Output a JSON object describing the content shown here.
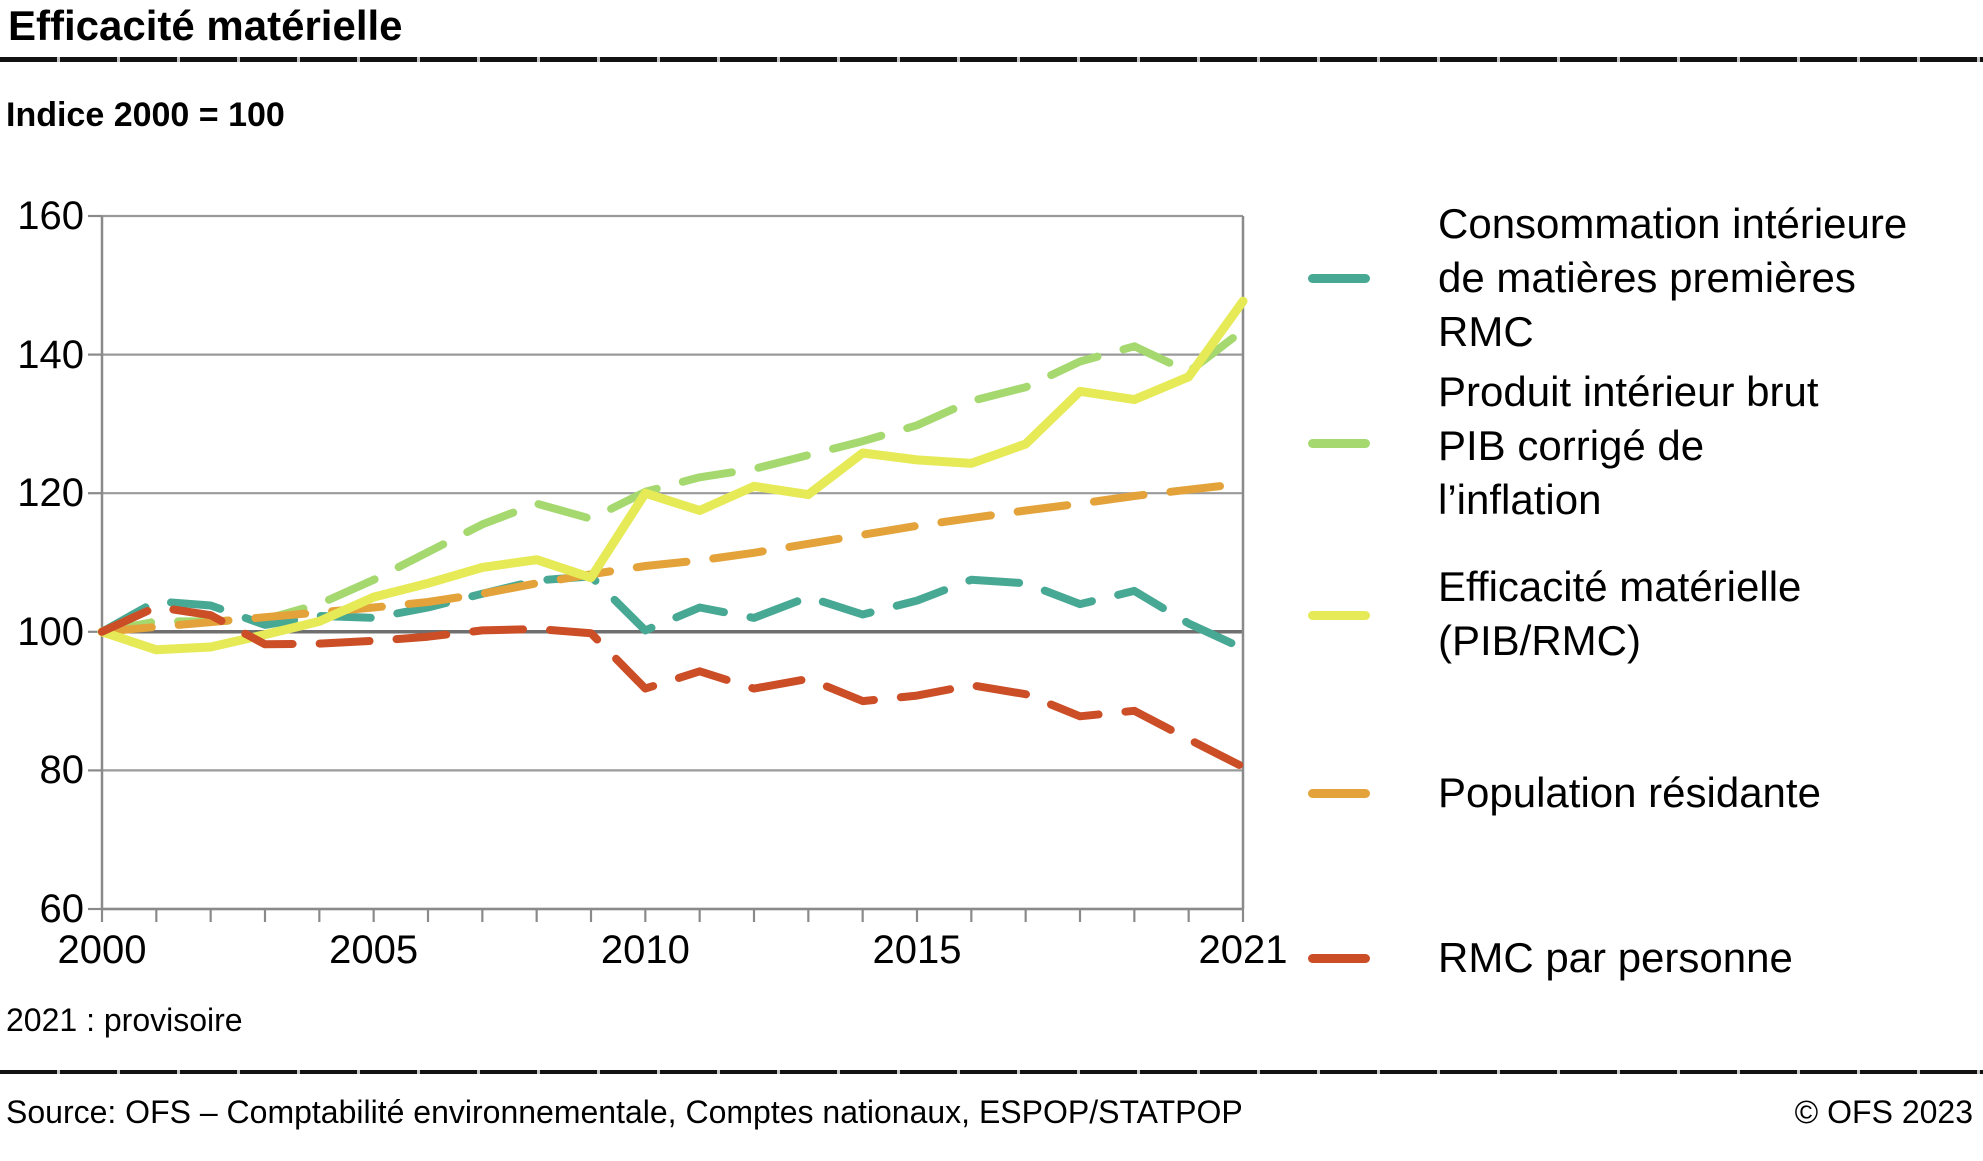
{
  "header": {
    "title": "Efficacité matérielle",
    "subtitle": "Indice 2000 = 100"
  },
  "footnote": "2021 : provisoire",
  "footer": {
    "source": "Source: OFS – Comptabilité environnementale, Comptes nationaux, ESPOP/STATPOP",
    "copyright": "© OFS 2023"
  },
  "colors": {
    "rmc": "#47a893",
    "pib": "#a5d96f",
    "efficacite": "#e6ea57",
    "population": "#e3a33a",
    "rmc_par_personne": "#cb4e27",
    "grid": "#9a9a9a",
    "grid_reference": "#6f6f6f",
    "axis": "#8a8a8a",
    "text": "#000000"
  },
  "chart_data": {
    "type": "line",
    "title": "Efficacité matérielle",
    "unit_label": "Indice 2000 = 100",
    "x": [
      2000,
      2001,
      2002,
      2003,
      2004,
      2005,
      2006,
      2007,
      2008,
      2009,
      2010,
      2011,
      2012,
      2013,
      2014,
      2015,
      2016,
      2017,
      2018,
      2019,
      2020,
      2021
    ],
    "x_tick_labels": [
      "2000",
      "2005",
      "2010",
      "2015",
      "2021"
    ],
    "x_tick_positions": [
      2000,
      2005,
      2010,
      2015,
      2021
    ],
    "y_ticks": [
      160,
      140,
      120,
      100,
      80,
      60
    ],
    "ylim": [
      60,
      160
    ],
    "xlim": [
      2000,
      2021
    ],
    "reference_line": 100,
    "grid": true,
    "legend_position": "right",
    "series": [
      {
        "id": "pib",
        "name": "Produit intérieur brut PIB corrigé de l'inflation",
        "dashed": true,
        "values": [
          100,
          101.5,
          101.5,
          101.8,
          104,
          107.5,
          111.5,
          115.5,
          118.5,
          116.3,
          120.2,
          122.3,
          123.5,
          125.5,
          127.5,
          129.8,
          133.3,
          135.3,
          139,
          141.2,
          137.5,
          143.5
        ]
      },
      {
        "id": "rmc",
        "name": "Consommation intérieure de matières premières RMC",
        "dashed": true,
        "values": [
          100,
          104.4,
          103.8,
          101,
          102.3,
          102,
          103.5,
          105.5,
          107.4,
          108,
          100.2,
          103.5,
          102,
          105,
          102.5,
          104.5,
          107.5,
          107,
          104,
          105.9,
          101.2,
          97.6
        ]
      },
      {
        "id": "population",
        "name": "Population résidante",
        "dashed": true,
        "values": [
          100,
          100.7,
          101.4,
          102.1,
          102.8,
          103.5,
          104.3,
          105.5,
          107,
          108.3,
          109.5,
          110.3,
          111.4,
          112.7,
          114,
          115.3,
          116.4,
          117.5,
          118.5,
          119.6,
          120.5,
          121.4
        ]
      },
      {
        "id": "efficacite",
        "name": "Efficacité matérielle (PIB/RMC)",
        "dashed": false,
        "values": [
          100,
          97.4,
          97.8,
          99.6,
          101.5,
          105,
          107,
          109.3,
          110.4,
          107.8,
          120,
          117.5,
          121,
          119.8,
          125.8,
          124.8,
          124.3,
          127.1,
          134.7,
          133.5,
          136.8,
          147.7
        ]
      },
      {
        "id": "rmc_par_personne",
        "name": "RMC par personne",
        "dashed": true,
        "values": [
          100,
          103.6,
          102.4,
          98.2,
          98.3,
          98.7,
          99.3,
          100.2,
          100.4,
          99.8,
          91.8,
          94.3,
          91.8,
          93.2,
          90,
          90.8,
          92.3,
          91,
          87.8,
          88.6,
          84.5,
          80.5
        ]
      }
    ]
  },
  "legend": {
    "items": [
      {
        "series_id": "rmc",
        "lines": [
          "Consommation intérieure",
          "de matières premières",
          "RMC"
        ]
      },
      {
        "series_id": "pib",
        "lines": [
          "Produit intérieur brut",
          "PIB corrigé de",
          "l’inflation"
        ]
      },
      {
        "series_id": "efficacite",
        "lines": [
          "Efficacité matérielle",
          "(PIB/RMC)"
        ]
      },
      {
        "series_id": "population",
        "lines": [
          "Population résidante"
        ]
      },
      {
        "series_id": "rmc_par_personne",
        "lines": [
          "RMC par personne"
        ]
      }
    ]
  }
}
